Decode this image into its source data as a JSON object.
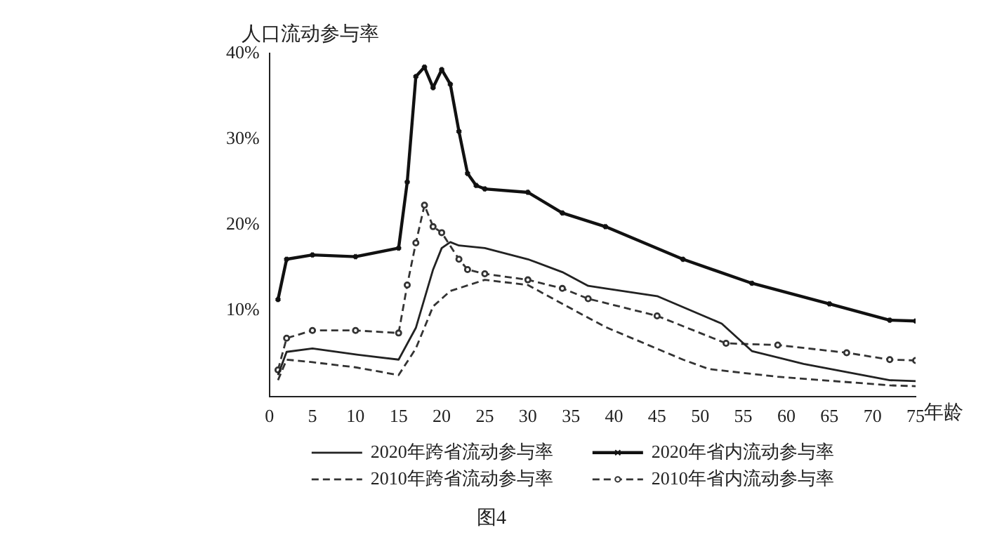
{
  "chart_data": {
    "type": "line",
    "ylabel": "人口流动参与率",
    "xlabel": "年龄",
    "xlim": [
      0,
      75
    ],
    "xticks": [
      0,
      5,
      10,
      15,
      20,
      25,
      30,
      35,
      40,
      45,
      50,
      55,
      60,
      65,
      70,
      75
    ],
    "ylim": [
      0,
      40
    ],
    "yticks": [
      {
        "value": 10,
        "label": "10%"
      },
      {
        "value": 20,
        "label": "20%"
      },
      {
        "value": 30,
        "label": "30%"
      },
      {
        "value": 40,
        "label": "40%"
      }
    ],
    "grid": false,
    "legend": "bottom",
    "annotations": [
      "图4"
    ],
    "series": [
      {
        "name": "2020年跨省流动参与率",
        "color": "#222222",
        "line_style": "solid",
        "marker": "none",
        "x": [
          1,
          2,
          5,
          10,
          15,
          17,
          19,
          20,
          21,
          22,
          25,
          30,
          34,
          37,
          39,
          45,
          52.5,
          56,
          62,
          72,
          75
        ],
        "values": [
          2.5,
          5.2,
          5.6,
          4.9,
          4.3,
          8,
          14.8,
          17.3,
          18,
          17.6,
          17.3,
          16,
          14.5,
          12.9,
          12.6,
          11.7,
          8.5,
          5.3,
          3.8,
          1.9,
          1.8
        ]
      },
      {
        "name": "2020年省内流动参与率",
        "color": "#111111",
        "line_style": "solid",
        "marker": "cross",
        "x": [
          1,
          2,
          5,
          10,
          15,
          16,
          17,
          18,
          19,
          20,
          21,
          22,
          23,
          24,
          25,
          30,
          34,
          39,
          48,
          56,
          65,
          72,
          75
        ],
        "values": [
          11.3,
          16,
          16.5,
          16.3,
          17.3,
          25,
          37.3,
          38.4,
          36,
          38.1,
          36.4,
          30.9,
          26,
          24.6,
          24.2,
          23.8,
          21.4,
          19.8,
          16,
          13.2,
          10.8,
          8.9,
          8.8
        ]
      },
      {
        "name": "2010年跨省流动参与率",
        "color": "#333333",
        "line_style": "dashed",
        "marker": "none",
        "x": [
          1,
          2,
          5,
          10,
          15,
          17,
          19,
          21,
          25,
          30,
          34,
          39,
          48,
          51,
          59,
          72,
          75
        ],
        "values": [
          1.9,
          4.3,
          4,
          3.4,
          2.5,
          5.6,
          10.5,
          12.3,
          13.6,
          13,
          10.8,
          8.1,
          4.3,
          3.2,
          2.3,
          1.3,
          1.2
        ]
      },
      {
        "name": "2010年省内流动参与率",
        "color": "#333333",
        "line_style": "dashed",
        "marker": "circle",
        "x": [
          1,
          2,
          5,
          10,
          15,
          16,
          17,
          18,
          19,
          20,
          22,
          23,
          25,
          30,
          34,
          37,
          45,
          53,
          59,
          67,
          72,
          75
        ],
        "values": [
          3.1,
          6.8,
          7.7,
          7.7,
          7.4,
          13,
          17.9,
          22.3,
          19.8,
          19.1,
          16,
          14.8,
          14.3,
          13.6,
          12.6,
          11.4,
          9.4,
          6.2,
          6,
          5.1,
          4.3,
          4.2
        ]
      }
    ]
  }
}
